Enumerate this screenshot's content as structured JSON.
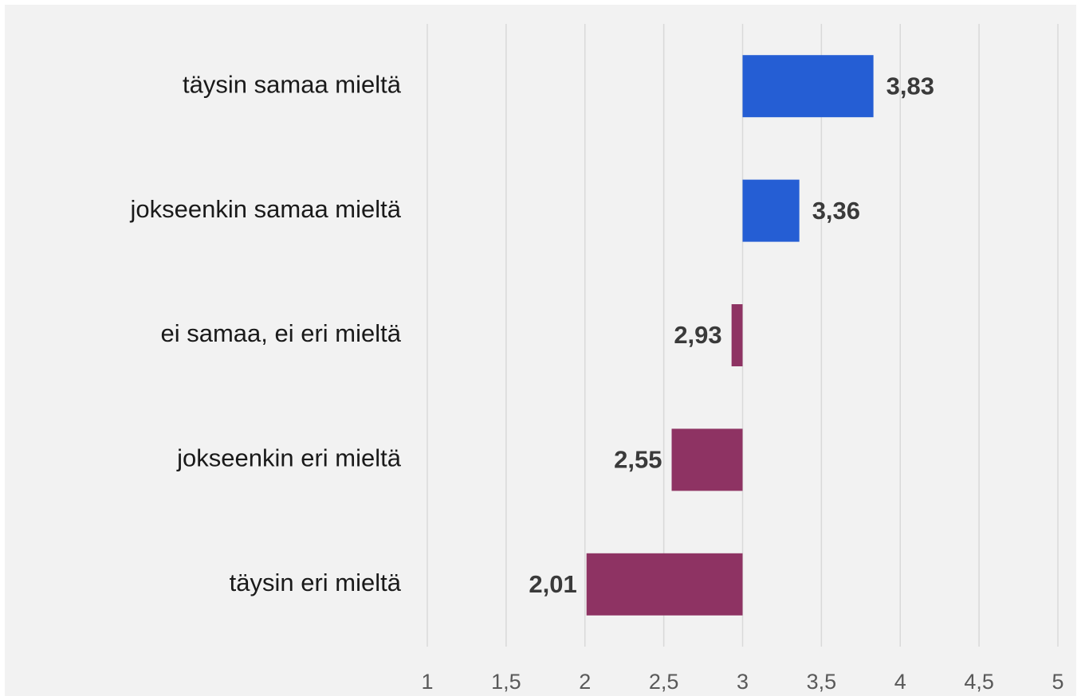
{
  "chart_data": {
    "type": "bar",
    "orientation": "horizontal",
    "categories": [
      "täysin samaa mieltä",
      "jokseenkin samaa mieltä",
      "ei samaa, ei eri mieltä",
      "jokseenkin eri mieltä",
      "täysin eri mieltä"
    ],
    "values": [
      3.83,
      3.36,
      2.93,
      2.55,
      2.01
    ],
    "value_labels": [
      "3,83",
      "3,36",
      "2,93",
      "2,55",
      "2,01"
    ],
    "colors": [
      "#255ed4",
      "#255ed4",
      "#8e3363",
      "#8e3363",
      "#8e3363"
    ],
    "baseline": 3,
    "xlim": [
      1,
      5
    ],
    "xticks": [
      1,
      {
        "value": 1.5,
        "label": "1,5"
      },
      2,
      {
        "value": 2.5,
        "label": "2,5"
      },
      3,
      {
        "value": 3.5,
        "label": "3,5"
      },
      4,
      {
        "value": 4.5,
        "label": "4,5"
      },
      5
    ],
    "grid": true
  }
}
